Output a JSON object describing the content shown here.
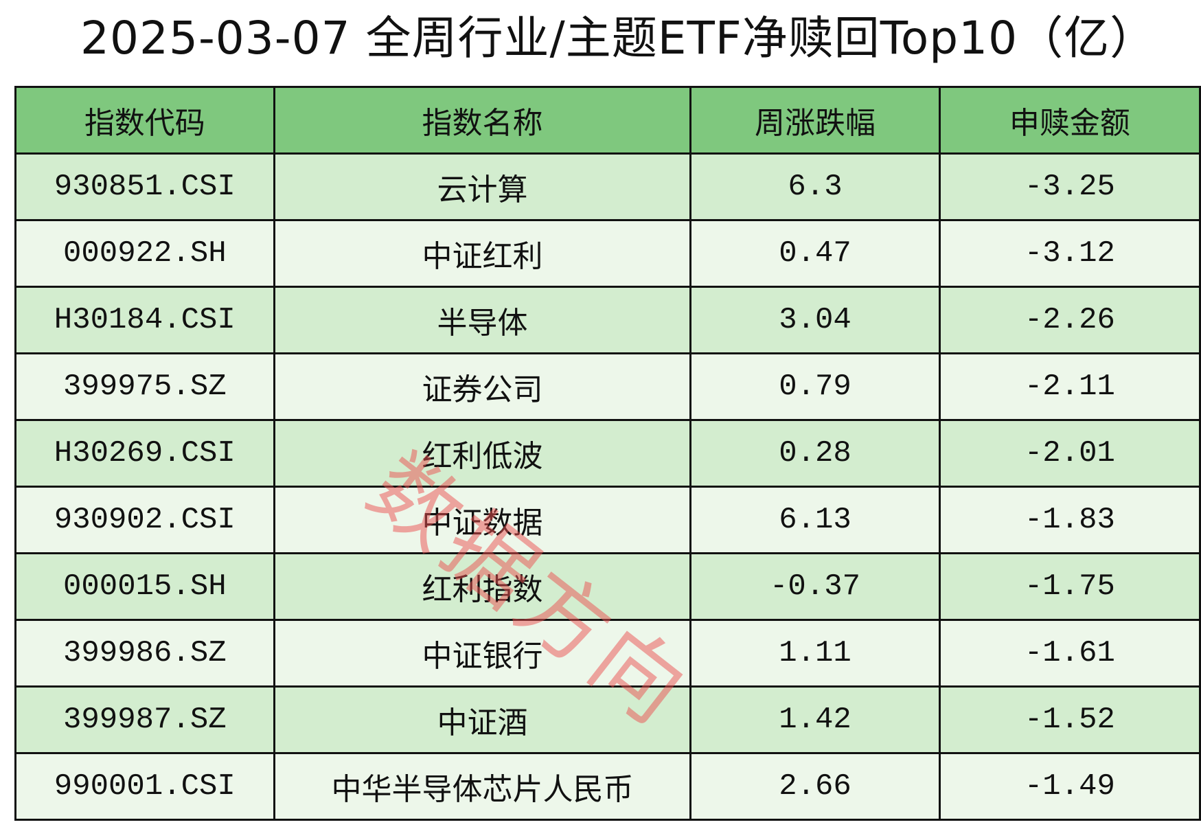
{
  "title": "2025-03-07 全周行业/主题ETF净赎回Top10（亿）",
  "watermark": "数据方向",
  "colors": {
    "header_bg": "#7fc87e",
    "row_odd": "#d3edcf",
    "row_even": "#edf7ea",
    "watermark": "#eb5050"
  },
  "table": {
    "headers": [
      "指数代码",
      "指数名称",
      "周涨跌幅",
      "申赎金额"
    ],
    "rows": [
      [
        "930851.CSI",
        "云计算",
        "6.3",
        "-3.25"
      ],
      [
        "000922.SH",
        "中证红利",
        "0.47",
        "-3.12"
      ],
      [
        "H30184.CSI",
        "半导体",
        "3.04",
        "-2.26"
      ],
      [
        "399975.SZ",
        "证券公司",
        "0.79",
        "-2.11"
      ],
      [
        "H30269.CSI",
        "红利低波",
        "0.28",
        "-2.01"
      ],
      [
        "930902.CSI",
        "中证数据",
        "6.13",
        "-1.83"
      ],
      [
        "000015.SH",
        "红利指数",
        "-0.37",
        "-1.75"
      ],
      [
        "399986.SZ",
        "中证银行",
        "1.11",
        "-1.61"
      ],
      [
        "399987.SZ",
        "中证酒",
        "1.42",
        "-1.52"
      ],
      [
        "990001.CSI",
        "中华半导体芯片人民币",
        "2.66",
        "-1.49"
      ]
    ]
  }
}
